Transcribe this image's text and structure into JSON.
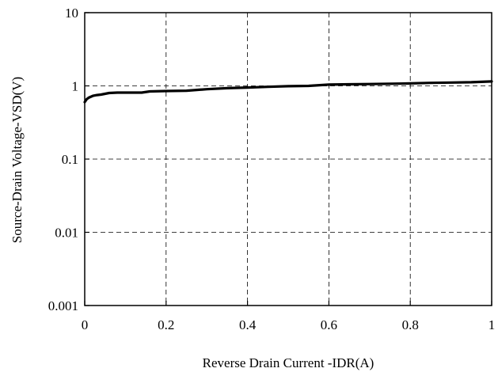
{
  "chart_data": {
    "type": "line",
    "title": "",
    "xlabel": "Reverse Drain Current -IDR(A)",
    "ylabel": "Source-Drain Voltage-VSD(V)",
    "xlim": [
      0,
      1
    ],
    "ylim": [
      0.001,
      10
    ],
    "yscale": "log",
    "grid": true,
    "legend": "none",
    "x_ticks": [
      0,
      0.2,
      0.4,
      0.6,
      0.8,
      1
    ],
    "x_tick_labels": [
      "0",
      "0.2",
      "0.4",
      "0.6",
      "0.8",
      "1"
    ],
    "y_ticks": [
      0.001,
      0.01,
      0.1,
      1,
      10
    ],
    "y_tick_labels": [
      "0.001",
      "0.01",
      "0.1",
      "1",
      "10"
    ],
    "series": [
      {
        "color": "#000000",
        "x": [
          0,
          0.005,
          0.01,
          0.02,
          0.03,
          0.04,
          0.05,
          0.06,
          0.08,
          0.1,
          0.14,
          0.16,
          0.2,
          0.25,
          0.3,
          0.35,
          0.4,
          0.45,
          0.5,
          0.55,
          0.6,
          0.65,
          0.7,
          0.75,
          0.8,
          0.85,
          0.9,
          0.95,
          1.0
        ],
        "y": [
          0.6,
          0.66,
          0.69,
          0.73,
          0.75,
          0.76,
          0.78,
          0.8,
          0.81,
          0.81,
          0.81,
          0.84,
          0.85,
          0.86,
          0.9,
          0.93,
          0.95,
          0.97,
          0.99,
          1.0,
          1.04,
          1.05,
          1.06,
          1.07,
          1.08,
          1.1,
          1.11,
          1.12,
          1.15
        ]
      }
    ]
  }
}
